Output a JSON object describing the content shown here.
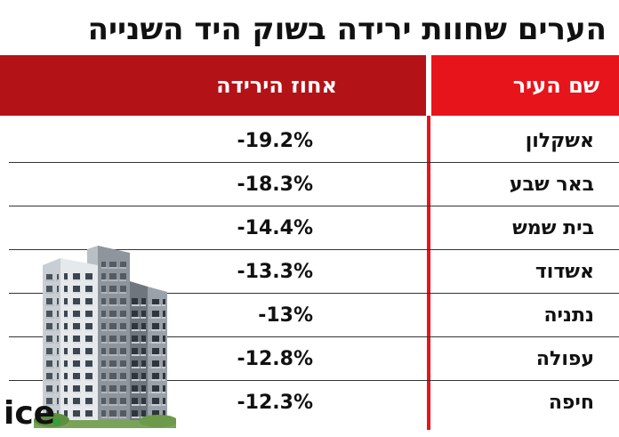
{
  "title": "הערים שחוות ירידה בשוק היד השנייה",
  "table": {
    "headers": {
      "city": "שם העיר",
      "percent": "אחוז הירידה"
    },
    "rows": [
      {
        "city": "אשקלון",
        "percent": "-19.2%"
      },
      {
        "city": "באר שבע",
        "percent": "-18.3%"
      },
      {
        "city": "בית שמש",
        "percent": "-14.4%"
      },
      {
        "city": "אשדוד",
        "percent": "-13.3%"
      },
      {
        "city": "נתניה",
        "percent": "-13%"
      },
      {
        "city": "עפולה",
        "percent": "-12.8%"
      },
      {
        "city": "חיפה",
        "percent": "-12.3%"
      }
    ]
  },
  "logo": {
    "text": "ice"
  },
  "colors": {
    "header_city": "#e8141c",
    "header_percent": "#b31217",
    "divider": "#e8141c",
    "logo_green": "#2fa23a"
  }
}
